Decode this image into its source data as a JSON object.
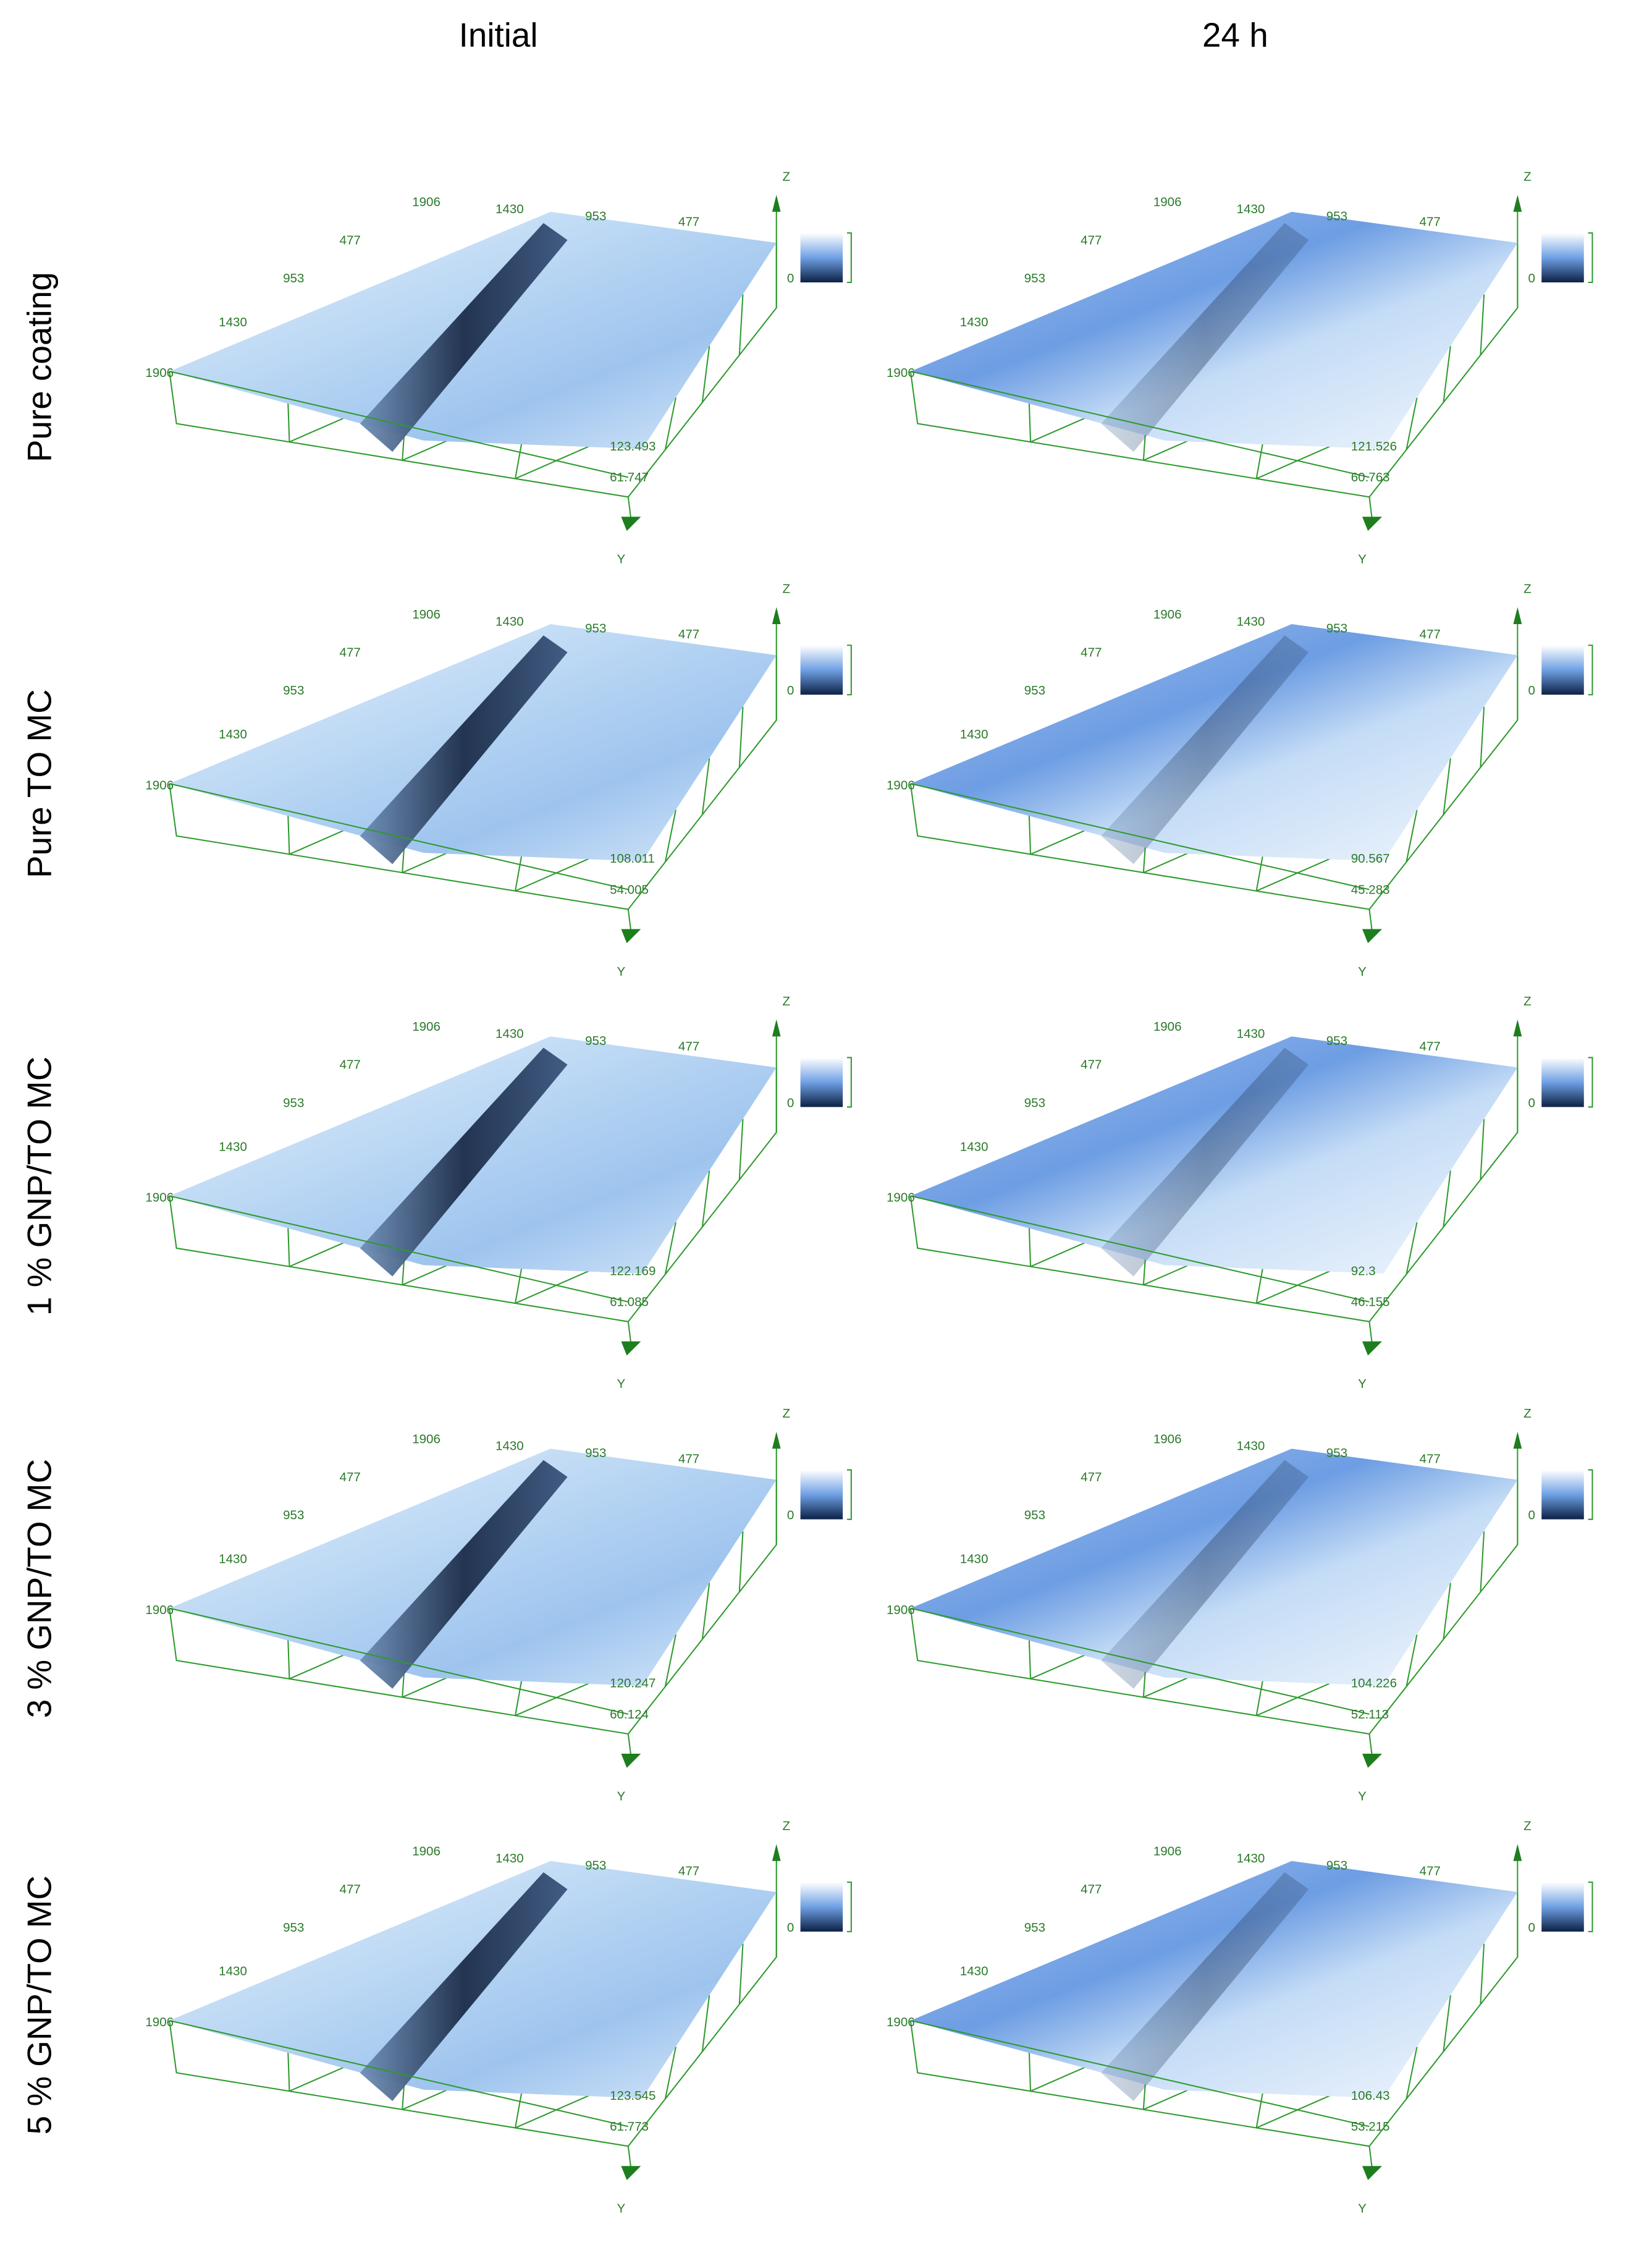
{
  "columns": [
    "Initial",
    "24 h"
  ],
  "rows": [
    "Pure coating",
    "Pure TO MC",
    "1 % GNP/TO MC",
    "3 % GNP/TO MC",
    "5 % GNP/TO MC"
  ],
  "axes": {
    "back_ticks": [
      "1906",
      "1430",
      "953",
      "477"
    ],
    "left_ticks": [
      "477",
      "953",
      "1430",
      "1906"
    ],
    "z_label": "Z",
    "y_label": "Y",
    "scale_zero": "0"
  },
  "panels": [
    [
      {
        "z_max": "123.493",
        "z_mid": "61.747"
      },
      {
        "z_max": "121.526",
        "z_mid": "60.763"
      }
    ],
    [
      {
        "z_max": "108.011",
        "z_mid": "54.005"
      },
      {
        "z_max": "90.567",
        "z_mid": "45.283"
      }
    ],
    [
      {
        "z_max": "122.169",
        "z_mid": "61.085"
      },
      {
        "z_max": "92.3",
        "z_mid": "46.155"
      }
    ],
    [
      {
        "z_max": "120.247",
        "z_mid": "60.124"
      },
      {
        "z_max": "104.226",
        "z_mid": "52.113"
      }
    ],
    [
      {
        "z_max": "123.545",
        "z_mid": "61.773"
      },
      {
        "z_max": "106.43",
        "z_mid": "53.215"
      }
    ]
  ]
}
